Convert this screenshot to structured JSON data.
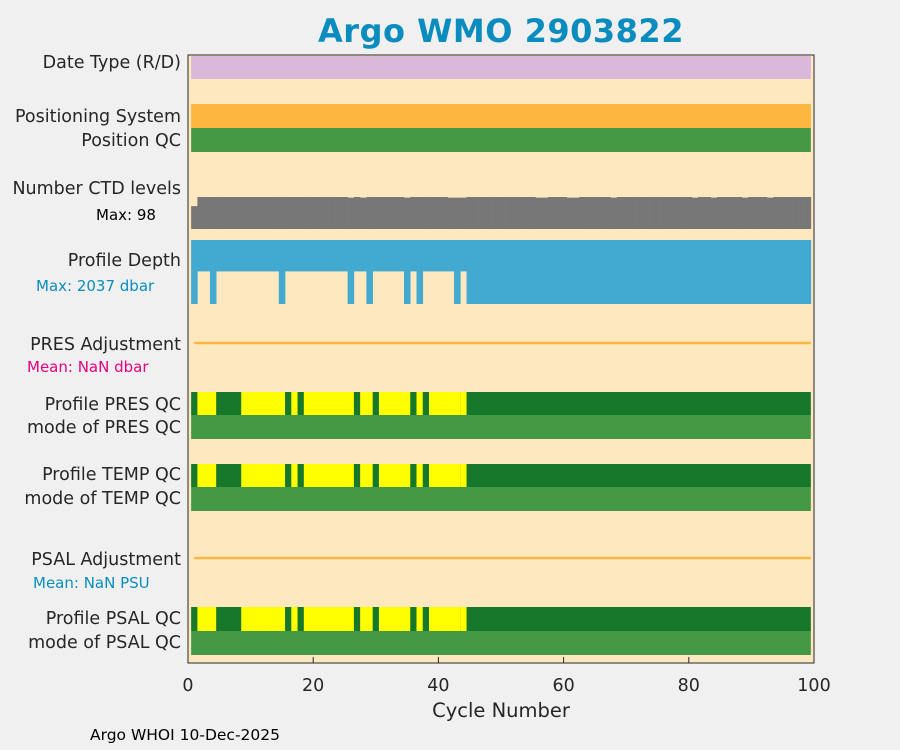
{
  "title": "Argo WMO 2903822",
  "footer": "Argo WHOI 10-Dec-2025",
  "colors": {
    "title": "#0a8dbe",
    "background": "#fde8c0",
    "figure": "#f0f0f0",
    "date_type": "#d9b8d9",
    "positioning": "#fdb640",
    "qc_good": "#459944",
    "qc_profile_good": "#17772a",
    "qc_profile_mixed": "#ffff00",
    "ctd_levels": "#777777",
    "profile_depth": "#42a9d0",
    "adjustment_line": "#fdb640",
    "pres_mean_text": "#e6007e",
    "psal_mean_text": "#0a8dbe"
  },
  "labels": {
    "date_type": "Date Type (R/D)",
    "positioning_system": "Positioning System",
    "position_qc": "Position QC",
    "number_ctd_levels": "Number CTD levels",
    "ctd_max": "Max: 98",
    "profile_depth": "Profile Depth",
    "depth_max": "Max: 2037 dbar",
    "pres_adjustment": "PRES Adjustment",
    "pres_mean": "Mean:  NaN dbar",
    "profile_pres_qc": "Profile PRES QC",
    "mode_pres_qc": "mode of PRES QC",
    "profile_temp_qc": "Profile TEMP QC",
    "mode_temp_qc": "mode of TEMP QC",
    "psal_adjustment": "PSAL Adjustment",
    "psal_mean": "Mean:  NaN PSU",
    "profile_psal_qc": "Profile PSAL QC",
    "mode_psal_qc": "mode of PSAL QC"
  },
  "chart_data": {
    "type": "heatmap",
    "xlabel": "Cycle Number",
    "xlim": [
      0,
      100
    ],
    "xticks": [
      0,
      20,
      40,
      60,
      80,
      100
    ],
    "cycles": [
      1,
      99
    ],
    "ctd_levels": {
      "max": 98,
      "full_value": 98,
      "drops": [
        {
          "cycles": [
            1,
            1
          ],
          "value": 70
        },
        {
          "cycles": [
            26,
            26
          ],
          "value": 96
        },
        {
          "cycles": [
            28,
            28
          ],
          "value": 96
        },
        {
          "cycles": [
            35,
            35
          ],
          "value": 96
        },
        {
          "cycles": [
            42,
            44
          ],
          "value": 96
        },
        {
          "cycles": [
            56,
            57
          ],
          "value": 96
        },
        {
          "cycles": [
            61,
            62
          ],
          "value": 96
        },
        {
          "cycles": [
            68,
            68
          ],
          "value": 96
        },
        {
          "cycles": [
            81,
            81
          ],
          "value": 96
        },
        {
          "cycles": [
            84,
            84
          ],
          "value": 96
        },
        {
          "cycles": [
            89,
            89
          ],
          "value": 96
        },
        {
          "cycles": [
            93,
            93
          ],
          "value": 96
        }
      ]
    },
    "profile_depth": {
      "max_dbar": 2037,
      "full_cycles": [
        [
          1,
          1
        ],
        [
          4,
          4
        ],
        [
          15,
          15
        ],
        [
          26,
          26
        ],
        [
          29,
          29
        ],
        [
          35,
          35
        ],
        [
          37,
          37
        ],
        [
          43,
          43
        ],
        [
          45,
          99
        ]
      ],
      "shallow_value": 1000
    },
    "profile_qc_mixed_cycles": [
      [
        2,
        4
      ],
      [
        9,
        15
      ],
      [
        17,
        17
      ],
      [
        19,
        26
      ],
      [
        28,
        29
      ],
      [
        31,
        35
      ],
      [
        37,
        37
      ],
      [
        39,
        43
      ],
      [
        44,
        44
      ]
    ],
    "pres_adjustment_mean": "NaN",
    "psal_adjustment_mean": "NaN"
  }
}
